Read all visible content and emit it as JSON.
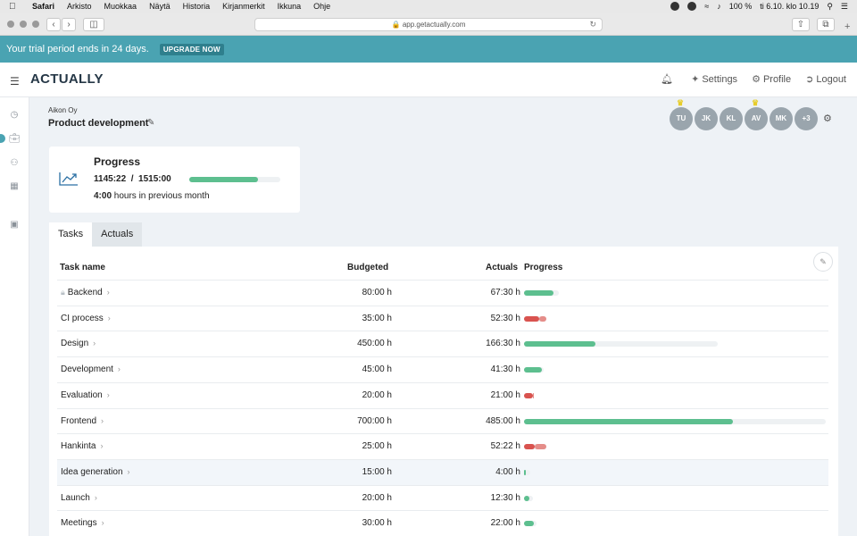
{
  "os_menubar": {
    "app": "Safari",
    "items": [
      "Arkisto",
      "Muokkaa",
      "Näytä",
      "Historia",
      "Kirjanmerkit",
      "Ikkuna",
      "Ohje"
    ],
    "battery": "100 %",
    "clock": "ti 6.10. klo 10.19"
  },
  "browser": {
    "url": "app.getactually.com"
  },
  "trial": {
    "message": "Your trial period ends in 24 days.",
    "upgrade_label": "UPGRADE NOW"
  },
  "header": {
    "logo": "ACTUALLY",
    "settings_label": "Settings",
    "profile_label": "Profile",
    "logout_label": "Logout"
  },
  "project": {
    "company": "Aikon Oy",
    "name": "Product development"
  },
  "team": {
    "members": [
      "TU",
      "JK",
      "KL",
      "AV",
      "MK",
      "+3"
    ],
    "crowned": [
      "TU",
      "AV"
    ]
  },
  "progress_card": {
    "title": "Progress",
    "value_text": "1145:22  /  1515:00",
    "fraction": 0.756,
    "prev_month_hours": "4:00",
    "prev_month_suffix": "hours in previous month"
  },
  "tabs": [
    {
      "label": "Tasks",
      "active": true
    },
    {
      "label": "Actuals",
      "active": false
    }
  ],
  "table": {
    "columns": {
      "name": "Task name",
      "budgeted": "Budgeted",
      "actuals": "Actuals",
      "progress": "Progress"
    },
    "rows": [
      {
        "name": "Backend",
        "locked": true,
        "budgeted": "80:00 h",
        "actuals": "67:30 h",
        "budget_hours": 80,
        "actual_hours": 67.5
      },
      {
        "name": "CI process",
        "locked": false,
        "budgeted": "35:00 h",
        "actuals": "52:30 h",
        "budget_hours": 35,
        "actual_hours": 52.5
      },
      {
        "name": "Design",
        "locked": false,
        "budgeted": "450:00 h",
        "actuals": "166:30 h",
        "budget_hours": 450,
        "actual_hours": 166.5
      },
      {
        "name": "Development",
        "locked": false,
        "budgeted": "45:00 h",
        "actuals": "41:30 h",
        "budget_hours": 45,
        "actual_hours": 41.5
      },
      {
        "name": "Evaluation",
        "locked": false,
        "budgeted": "20:00 h",
        "actuals": "21:00 h",
        "budget_hours": 20,
        "actual_hours": 21
      },
      {
        "name": "Frontend",
        "locked": false,
        "budgeted": "700:00 h",
        "actuals": "485:00 h",
        "budget_hours": 700,
        "actual_hours": 485
      },
      {
        "name": "Hankinta",
        "locked": false,
        "budgeted": "25:00 h",
        "actuals": "52:22 h",
        "budget_hours": 25,
        "actual_hours": 52.37
      },
      {
        "name": "Idea generation",
        "locked": false,
        "budgeted": "15:00 h",
        "actuals": "4:00 h",
        "budget_hours": 15,
        "actual_hours": 4,
        "highlighted": true
      },
      {
        "name": "Launch",
        "locked": false,
        "budgeted": "20:00 h",
        "actuals": "12:30 h",
        "budget_hours": 20,
        "actual_hours": 12.5
      },
      {
        "name": "Meetings",
        "locked": false,
        "budgeted": "30:00 h",
        "actuals": "22:00 h",
        "budget_hours": 30,
        "actual_hours": 22
      }
    ]
  },
  "colors": {
    "accent": "#4aa3b2",
    "progress_ok": "#5dbf8f",
    "progress_over": "#d9534f",
    "track": "#eef1f3"
  }
}
